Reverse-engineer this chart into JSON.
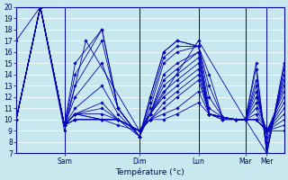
{
  "xlabel": "Température (°c)",
  "ylim": [
    7,
    20
  ],
  "yticks": [
    7,
    8,
    9,
    10,
    11,
    12,
    13,
    14,
    15,
    16,
    17,
    18,
    19,
    20
  ],
  "background_color": "#c8e8f0",
  "line_color": "#0000bb",
  "grid_color": "#ffffff",
  "day_boundaries": [
    0.18,
    0.46,
    0.68,
    0.855,
    0.935
  ],
  "day_labels": [
    "Sam",
    "Dim",
    "Lun",
    "Mar",
    "Mer"
  ],
  "xlim": [
    0.0,
    1.0
  ],
  "series": [
    {
      "xs": [
        0.0,
        0.09,
        0.18,
        0.22,
        0.32,
        0.38,
        0.46,
        0.5,
        0.55,
        0.6,
        0.68,
        0.72,
        0.77,
        0.82,
        0.855,
        0.895,
        0.935,
        1.0
      ],
      "ys": [
        10,
        20,
        9.5,
        15,
        18,
        11,
        8.5,
        12,
        16,
        17,
        16.5,
        14,
        10.2,
        10,
        10,
        15,
        7,
        15
      ]
    },
    {
      "xs": [
        0.0,
        0.09,
        0.18,
        0.22,
        0.32,
        0.38,
        0.46,
        0.5,
        0.55,
        0.6,
        0.68,
        0.72,
        0.77,
        0.82,
        0.855,
        0.895,
        0.935,
        1.0
      ],
      "ys": [
        10,
        20,
        9.5,
        14,
        18,
        11,
        8.5,
        12,
        16,
        17,
        16.5,
        13,
        10.2,
        10,
        10,
        14.5,
        7,
        14.5
      ]
    },
    {
      "xs": [
        0.0,
        0.09,
        0.18,
        0.22,
        0.32,
        0.38,
        0.46,
        0.5,
        0.55,
        0.6,
        0.68,
        0.72,
        0.77,
        0.82,
        0.855,
        0.895,
        0.935,
        1.0
      ],
      "ys": [
        10,
        20,
        9.5,
        13,
        17,
        11,
        8.5,
        11.5,
        15.5,
        16.5,
        16.5,
        12,
        10.2,
        10,
        10,
        13.5,
        7.5,
        14
      ]
    },
    {
      "xs": [
        0.0,
        0.09,
        0.18,
        0.22,
        0.32,
        0.38,
        0.46,
        0.5,
        0.55,
        0.6,
        0.68,
        0.72,
        0.77,
        0.82,
        0.855,
        0.895,
        0.935,
        1.0
      ],
      "ys": [
        10,
        20,
        9.5,
        12,
        15,
        11,
        8.5,
        11,
        15,
        16,
        16.5,
        11,
        10.2,
        10,
        10,
        13,
        8,
        13.5
      ]
    },
    {
      "xs": [
        0.0,
        0.09,
        0.18,
        0.22,
        0.32,
        0.38,
        0.46,
        0.5,
        0.55,
        0.6,
        0.68,
        0.72,
        0.77,
        0.82,
        0.855,
        0.895,
        0.935,
        1.0
      ],
      "ys": [
        10,
        20,
        9.5,
        11,
        13,
        10.5,
        8.5,
        10.5,
        14,
        15,
        16,
        10.5,
        10.2,
        10,
        10,
        12.5,
        8.5,
        13
      ]
    },
    {
      "xs": [
        0.0,
        0.09,
        0.18,
        0.22,
        0.32,
        0.38,
        0.46,
        0.5,
        0.55,
        0.6,
        0.68,
        0.72,
        0.77,
        0.82,
        0.855,
        0.895,
        0.935,
        1.0
      ],
      "ys": [
        10,
        20,
        9.5,
        10.5,
        11.5,
        10,
        8.5,
        10.5,
        13.5,
        14.5,
        16,
        10.5,
        10.2,
        10,
        10,
        12,
        9,
        12.5
      ]
    },
    {
      "xs": [
        0.0,
        0.09,
        0.18,
        0.22,
        0.32,
        0.38,
        0.46,
        0.5,
        0.55,
        0.6,
        0.68,
        0.72,
        0.77,
        0.82,
        0.855,
        0.895,
        0.935,
        1.0
      ],
      "ys": [
        10,
        20,
        9.5,
        10.5,
        11,
        10,
        9,
        10.5,
        13,
        14,
        15.5,
        10.5,
        10.2,
        10,
        10,
        11.5,
        9,
        12
      ]
    },
    {
      "xs": [
        0.0,
        0.09,
        0.18,
        0.22,
        0.32,
        0.38,
        0.46,
        0.5,
        0.55,
        0.6,
        0.68,
        0.72,
        0.77,
        0.82,
        0.855,
        0.895,
        0.935,
        1.0
      ],
      "ys": [
        10,
        20,
        9.5,
        10.5,
        10.5,
        10,
        9,
        10.5,
        12.5,
        13.5,
        15,
        10.5,
        10.2,
        10,
        10,
        11,
        9,
        11.5
      ]
    },
    {
      "xs": [
        0.0,
        0.09,
        0.18,
        0.22,
        0.32,
        0.38,
        0.46,
        0.5,
        0.55,
        0.6,
        0.68,
        0.72,
        0.77,
        0.82,
        0.855,
        0.895,
        0.935,
        1.0
      ],
      "ys": [
        10,
        20,
        9.5,
        10.5,
        10,
        10,
        9,
        10.5,
        12,
        13,
        14.5,
        10.5,
        10.2,
        10,
        10,
        10.5,
        9,
        11
      ]
    },
    {
      "xs": [
        0.0,
        0.09,
        0.18,
        0.22,
        0.32,
        0.38,
        0.46,
        0.5,
        0.55,
        0.6,
        0.68,
        0.72,
        0.77,
        0.82,
        0.855,
        0.895,
        0.935,
        1.0
      ],
      "ys": [
        10,
        20,
        9.5,
        10.5,
        10,
        10,
        9,
        10,
        11.5,
        12.5,
        14,
        10.5,
        10.2,
        10,
        10,
        10,
        9,
        10.5
      ]
    },
    {
      "xs": [
        0.0,
        0.09,
        0.18,
        0.22,
        0.32,
        0.38,
        0.46,
        0.5,
        0.55,
        0.6,
        0.68,
        0.72,
        0.77,
        0.82,
        0.855,
        0.895,
        0.935,
        1.0
      ],
      "ys": [
        10,
        20,
        9.5,
        10,
        10,
        10,
        9,
        10,
        11,
        12,
        13.5,
        10.5,
        10.2,
        10,
        10,
        10,
        9,
        10
      ]
    },
    {
      "xs": [
        0.0,
        0.09,
        0.18,
        0.22,
        0.32,
        0.38,
        0.46,
        0.5,
        0.55,
        0.6,
        0.68,
        0.72,
        0.77,
        0.82,
        0.855,
        0.895,
        0.935,
        1.0
      ],
      "ys": [
        10,
        20,
        9.5,
        10,
        10,
        10,
        9,
        10,
        10.5,
        11,
        12.5,
        10.5,
        10,
        10,
        10,
        10,
        9,
        9.5
      ]
    },
    {
      "xs": [
        0.0,
        0.09,
        0.18,
        0.22,
        0.32,
        0.38,
        0.46,
        0.5,
        0.55,
        0.6,
        0.68,
        0.72,
        0.77,
        0.82,
        0.855,
        0.895,
        0.935,
        1.0
      ],
      "ys": [
        10,
        20,
        9.5,
        10,
        10,
        9.5,
        9,
        10,
        10,
        10.5,
        11.5,
        10.5,
        10,
        10,
        10,
        10,
        9,
        9
      ]
    },
    {
      "xs": [
        0.0,
        0.09,
        0.18,
        0.26,
        0.46,
        0.68,
        0.855,
        0.935,
        1.0
      ],
      "ys": [
        17,
        20,
        9,
        17,
        9,
        17,
        10,
        7,
        15
      ]
    }
  ]
}
